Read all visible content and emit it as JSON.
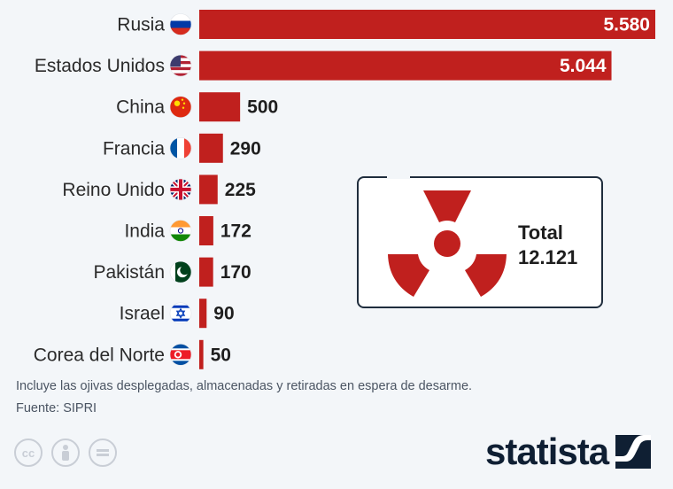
{
  "chart_data": {
    "type": "bar",
    "orientation": "horizontal",
    "categories": [
      "Rusia",
      "Estados Unidos",
      "China",
      "Francia",
      "Reino Unido",
      "India",
      "Pakistán",
      "Israel",
      "Corea del Norte"
    ],
    "values": [
      5580,
      5044,
      500,
      290,
      225,
      172,
      170,
      90,
      50
    ],
    "value_labels": [
      "5.580",
      "5.044",
      "500",
      "290",
      "225",
      "172",
      "170",
      "90",
      "50"
    ],
    "flags": [
      "russia-flag",
      "usa-flag",
      "china-flag",
      "france-flag",
      "uk-flag",
      "india-flag",
      "pakistan-flag",
      "israel-flag",
      "north-korea-flag"
    ],
    "xlim": [
      0,
      5580
    ],
    "bar_color": "#c0201e",
    "grid": false,
    "legend": "none"
  },
  "total": {
    "label": "Total",
    "value": "12.121",
    "icon": "radiation-icon"
  },
  "footnote": "Incluye las ojivas desplegadas, almacenadas y retiradas en espera de desarme.",
  "source": "Fuente: SIPRI",
  "license_icons": [
    "cc-icon",
    "attribution-icon",
    "no-derivatives-icon"
  ],
  "brand": {
    "name": "statista"
  },
  "colors": {
    "background": "#f3f6f9",
    "bar": "#c0201e",
    "text": "#2b2b2b",
    "brand": "#0f1f33"
  }
}
